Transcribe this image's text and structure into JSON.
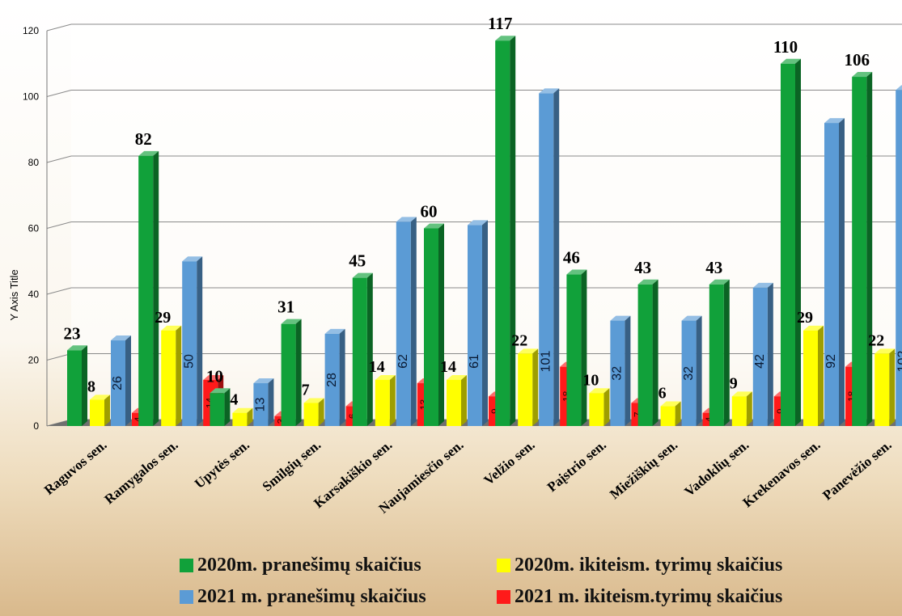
{
  "chart_data": {
    "type": "bar",
    "ylabel": "Y Axis Title",
    "xlabel": "",
    "ylim": [
      0,
      120
    ],
    "yticks": [
      0,
      20,
      40,
      60,
      80,
      100,
      120
    ],
    "grid": true,
    "legend_position": "bottom",
    "categories": [
      "Raguvos sen.",
      "Ramygalos sen.",
      "Upytės sen.",
      "Smilgių sen.",
      "Karsakiškio sen.",
      "Naujamiesčio sen.",
      "Velžio sen.",
      "Paįstrio sen.",
      "Miežiškių sen.",
      "Vadoklių sen.",
      "Krekenavos sen.",
      "Panevėžio sen."
    ],
    "series": [
      {
        "name": "2020m. pranešimų skaičius",
        "color": "#11a13a",
        "values": [
          23,
          82,
          10,
          31,
          45,
          60,
          117,
          46,
          43,
          43,
          110,
          106
        ]
      },
      {
        "name": "2020m. ikiteism. tyrimų skaičius",
        "color": "#ffff00",
        "values": [
          8,
          29,
          4,
          7,
          14,
          14,
          22,
          10,
          6,
          9,
          29,
          22
        ]
      },
      {
        "name": "2021 m. pranešimų skaičius",
        "color": "#5b9bd5",
        "values": [
          26,
          50,
          13,
          28,
          62,
          61,
          101,
          32,
          32,
          42,
          92,
          102
        ]
      },
      {
        "name": "2021 m. ikiteism.tyrimų skaičius",
        "color": "#ff1a1a",
        "values": [
          4,
          14,
          3,
          6,
          13,
          9,
          18,
          7,
          4,
          9,
          18,
          15
        ]
      }
    ]
  }
}
